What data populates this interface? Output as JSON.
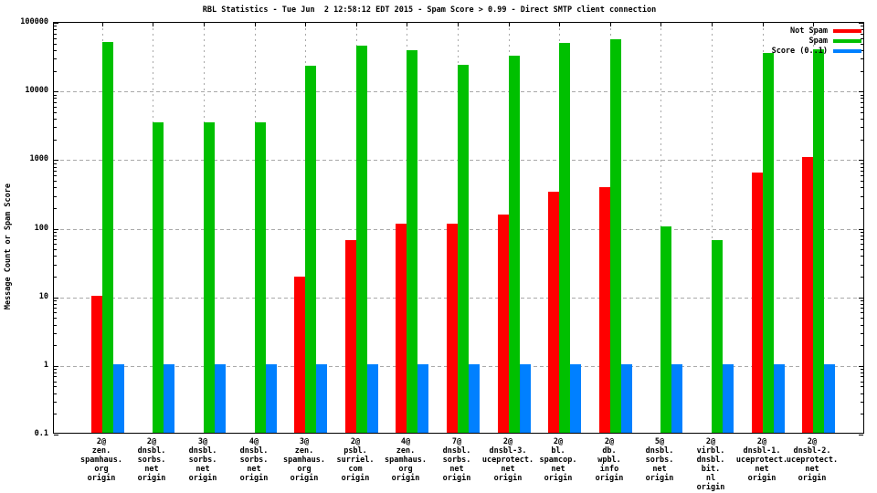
{
  "chart_data": {
    "type": "bar",
    "title": "RBL Statistics - Tue Jun  2 12:58:12 EDT 2015 - Spam Score > 0.99 - Direct SMTP client connection",
    "ylabel": "Message Count or Spam Score",
    "xlabel": "",
    "y_scale": "log",
    "ylim": [
      0.1,
      100000
    ],
    "grid": true,
    "legend_position": "top-right",
    "yticks": [
      100000,
      10000,
      1000,
      100,
      10,
      1,
      0.1
    ],
    "ytick_labels": [
      "100000",
      "10000",
      "1000",
      "100",
      "10",
      "1",
      "0.1"
    ],
    "gridline_values": [
      10000,
      1000,
      100,
      10,
      1
    ],
    "categories": [
      [
        "2@",
        "zen.",
        "spamhaus.",
        "org",
        "origin"
      ],
      [
        "2@",
        "dnsbl.",
        "sorbs.",
        "net",
        "origin"
      ],
      [
        "3@",
        "dnsbl.",
        "sorbs.",
        "net",
        "origin"
      ],
      [
        "4@",
        "dnsbl.",
        "sorbs.",
        "net",
        "origin"
      ],
      [
        "3@",
        "zen.",
        "spamhaus.",
        "org",
        "origin"
      ],
      [
        "2@",
        "psbl.",
        "surriel.",
        "com",
        "origin"
      ],
      [
        "4@",
        "zen.",
        "spamhaus.",
        "org",
        "origin"
      ],
      [
        "7@",
        "dnsbl.",
        "sorbs.",
        "net",
        "origin"
      ],
      [
        "2@",
        "dnsbl-3.",
        "uceprotect.",
        "net",
        "origin"
      ],
      [
        "2@",
        "bl.",
        "spamcop.",
        "net",
        "origin"
      ],
      [
        "2@",
        "db.",
        "wpbl.",
        "info",
        "origin"
      ],
      [
        "5@",
        "dnsbl.",
        "sorbs.",
        "net",
        "origin"
      ],
      [
        "2@",
        "virbl.",
        "dnsbl.",
        "bit.",
        "nl",
        "origin"
      ],
      [
        "2@",
        "dnsbl-1.",
        "uceprotect.",
        "net",
        "origin"
      ],
      [
        "2@",
        "dnsbl-2.",
        "uceprotect.",
        "net",
        "origin"
      ]
    ],
    "series": [
      {
        "name": "Not Spam",
        "color": "#ff0000",
        "values": [
          10,
          null,
          null,
          null,
          19,
          64,
          110,
          110,
          150,
          330,
          380,
          null,
          null,
          610,
          1040
        ]
      },
      {
        "name": "Spam",
        "color": "#00c000",
        "values": [
          50000,
          3300,
          3300,
          3300,
          22000,
          44000,
          37500,
          23000,
          31000,
          48000,
          54000,
          103,
          65,
          34000,
          38500
        ]
      },
      {
        "name": "Score (0..1)",
        "color": "#0080ff",
        "values": [
          1,
          1,
          1,
          1,
          1,
          1,
          1,
          1,
          1,
          1,
          1,
          1,
          1,
          1,
          1
        ]
      }
    ],
    "colors": {
      "axis": "#000000",
      "grid": "#a9a9a9",
      "background": "#ffffff"
    }
  }
}
